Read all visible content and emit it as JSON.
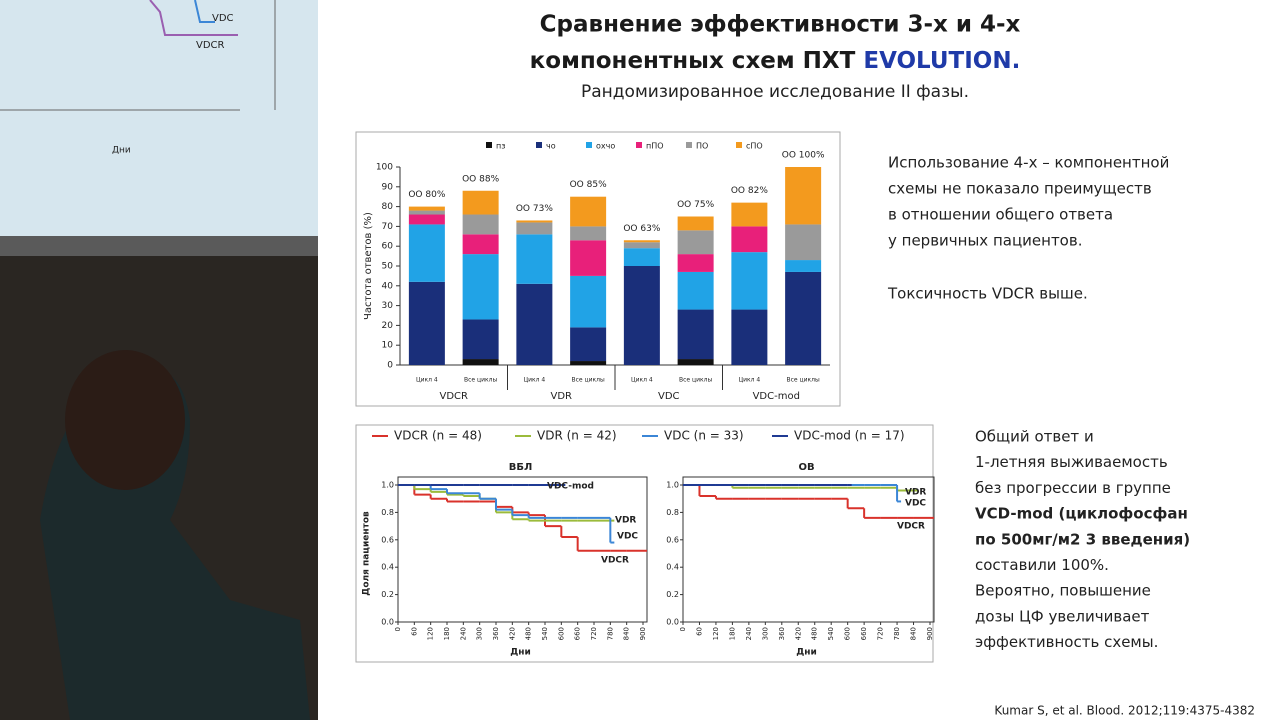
{
  "slide": {
    "title_line1": "Сравнение эффективности 3-х и 4-х",
    "title_line2": "компонентных схем ПХТ ",
    "title_accent": "EVOLUTION.",
    "subtitle": "Рандомизированное исследование II фазы.",
    "note1": [
      "Использование 4-х – компонентной",
      "схемы не показало преимуществ",
      "в отношении общего ответа",
      "у первичных пациентов."
    ],
    "note2": "Токсичность VDCR выше.",
    "note3": [
      "Общий ответ и",
      "1-летняя выживаемость",
      "без прогрессии в группе",
      "VCD-mod (циклофосфан",
      "по 500мг/м2 3 введения)",
      "составили 100%.",
      "Вероятно, повышение",
      "дозы ЦФ увеличивает",
      "эффективность схемы."
    ],
    "citation": "Kumar S, et al. Blood. 2012;119:4375-4382"
  },
  "backdrop": {
    "labels": [
      "VDC",
      "VDCR",
      "Дни"
    ]
  },
  "chart_data": [
    {
      "type": "bar",
      "stacked": true,
      "ylabel": "Частота ответов (%)",
      "ylim": [
        0,
        100
      ],
      "yticks": [
        0,
        10,
        20,
        30,
        40,
        50,
        60,
        70,
        80,
        90,
        100
      ],
      "categories": [
        "Цикл 4",
        "Все циклы",
        "Цикл 4",
        "Все циклы",
        "Цикл 4",
        "Все циклы",
        "Цикл 4",
        "Все циклы"
      ],
      "groups": [
        "VDCR",
        "VDR",
        "VDC",
        "VDC-mod"
      ],
      "annotations": [
        "ОО 80%",
        "ОО 88%",
        "ОО 73%",
        "ОО 85%",
        "ОО 63%",
        "ОО 75%",
        "ОО 82%",
        "ОО 100%"
      ],
      "series": [
        {
          "name": "пз",
          "color": "#111111",
          "values": [
            0,
            3,
            0,
            2,
            0,
            3,
            0,
            0
          ]
        },
        {
          "name": "чо",
          "color": "#1a2f7a",
          "values": [
            42,
            20,
            41,
            17,
            50,
            25,
            28,
            47
          ]
        },
        {
          "name": "охчо",
          "color": "#21a3e6",
          "values": [
            29,
            33,
            25,
            26,
            9,
            19,
            29,
            6
          ]
        },
        {
          "name": "пПО",
          "color": "#e8207a",
          "values": [
            5,
            10,
            0,
            18,
            0,
            9,
            13,
            0
          ]
        },
        {
          "name": "ПО",
          "color": "#9a9a9a",
          "values": [
            2,
            10,
            6,
            7,
            3,
            12,
            0,
            18
          ]
        },
        {
          "name": "сПО",
          "color": "#f39a1e",
          "values": [
            2,
            12,
            1,
            15,
            1,
            7,
            12,
            29
          ]
        }
      ]
    },
    {
      "type": "line",
      "step": true,
      "title": "ВБЛ",
      "ylabel": "Доля пациентов",
      "xlabel": "Дни",
      "xlim": [
        0,
        900
      ],
      "ylim": [
        0,
        1
      ],
      "xticks": [
        0,
        60,
        120,
        180,
        240,
        300,
        360,
        420,
        480,
        540,
        600,
        660,
        720,
        780,
        840,
        900
      ],
      "yticks": [
        {
          "value": 0,
          "label": "0.0"
        },
        0.2,
        0.4,
        0.6,
        0.8,
        {
          "value": 1,
          "label": "1.0"
        }
      ],
      "x": [
        0,
        60,
        120,
        180,
        240,
        300,
        360,
        420,
        480,
        540,
        600,
        660,
        720,
        780,
        840,
        900
      ],
      "curve_labels": [
        "VDC-mod",
        "VDR",
        "VDC",
        "VDCR"
      ],
      "series": [
        {
          "name": "VDCR (n = 48)",
          "color": "#d9322b",
          "values": [
            1,
            0.93,
            0.9,
            0.88,
            0.88,
            0.88,
            0.84,
            0.8,
            0.78,
            0.7,
            0.62,
            0.52,
            0.52,
            0.52,
            0.52,
            0.52
          ]
        },
        {
          "name": "VDR (n = 42)",
          "color": "#9bbb3b",
          "values": [
            1,
            0.97,
            0.95,
            0.93,
            0.92,
            0.9,
            0.8,
            0.75,
            0.74,
            0.74,
            0.74,
            0.74,
            0.74,
            0.74,
            null,
            null
          ]
        },
        {
          "name": "VDC (n = 33)",
          "color": "#3b86d6",
          "values": [
            1,
            1,
            0.97,
            0.94,
            0.94,
            0.9,
            0.82,
            0.78,
            0.76,
            0.76,
            0.76,
            0.76,
            0.76,
            0.58,
            null,
            null
          ]
        },
        {
          "name": "VDC-mod (n = 17)",
          "color": "#1f3a93",
          "values": [
            1,
            1,
            1,
            1,
            1,
            1,
            1,
            1,
            1,
            1,
            1,
            null,
            null,
            null,
            null,
            null
          ]
        }
      ]
    },
    {
      "type": "line",
      "step": true,
      "title": "ОВ",
      "xlabel": "Дни",
      "xlim": [
        0,
        900
      ],
      "ylim": [
        0,
        1
      ],
      "xticks": [
        0,
        60,
        120,
        180,
        240,
        300,
        360,
        420,
        480,
        540,
        600,
        660,
        720,
        780,
        840,
        900
      ],
      "yticks": [
        {
          "value": 0,
          "label": "0.0"
        },
        0.2,
        0.4,
        0.6,
        0.8,
        {
          "value": 1,
          "label": "1.0"
        }
      ],
      "x": [
        0,
        60,
        120,
        180,
        240,
        300,
        360,
        420,
        480,
        540,
        600,
        660,
        720,
        780,
        840,
        900
      ],
      "curve_labels": [
        "VDR",
        "VDC",
        "VDCR"
      ],
      "series": [
        {
          "color": "#d9322b",
          "values": [
            1,
            0.92,
            0.9,
            0.9,
            0.9,
            0.9,
            0.9,
            0.9,
            0.9,
            0.9,
            0.83,
            0.76,
            0.76,
            0.76,
            0.76,
            0.76
          ]
        },
        {
          "color": "#9bbb3b",
          "values": [
            1,
            1,
            1,
            0.98,
            0.98,
            0.98,
            0.98,
            0.98,
            0.98,
            0.98,
            0.98,
            0.98,
            0.98,
            0.96,
            0.96,
            null
          ]
        },
        {
          "color": "#3b86d6",
          "values": [
            1,
            1,
            1,
            1,
            1,
            1,
            1,
            1,
            1,
            1,
            1,
            1,
            1,
            0.88,
            null,
            null
          ]
        },
        {
          "color": "#1f3a93",
          "values": [
            1,
            1,
            1,
            1,
            1,
            1,
            1,
            1,
            1,
            1,
            1,
            null,
            null,
            null,
            null,
            null
          ]
        }
      ]
    }
  ]
}
